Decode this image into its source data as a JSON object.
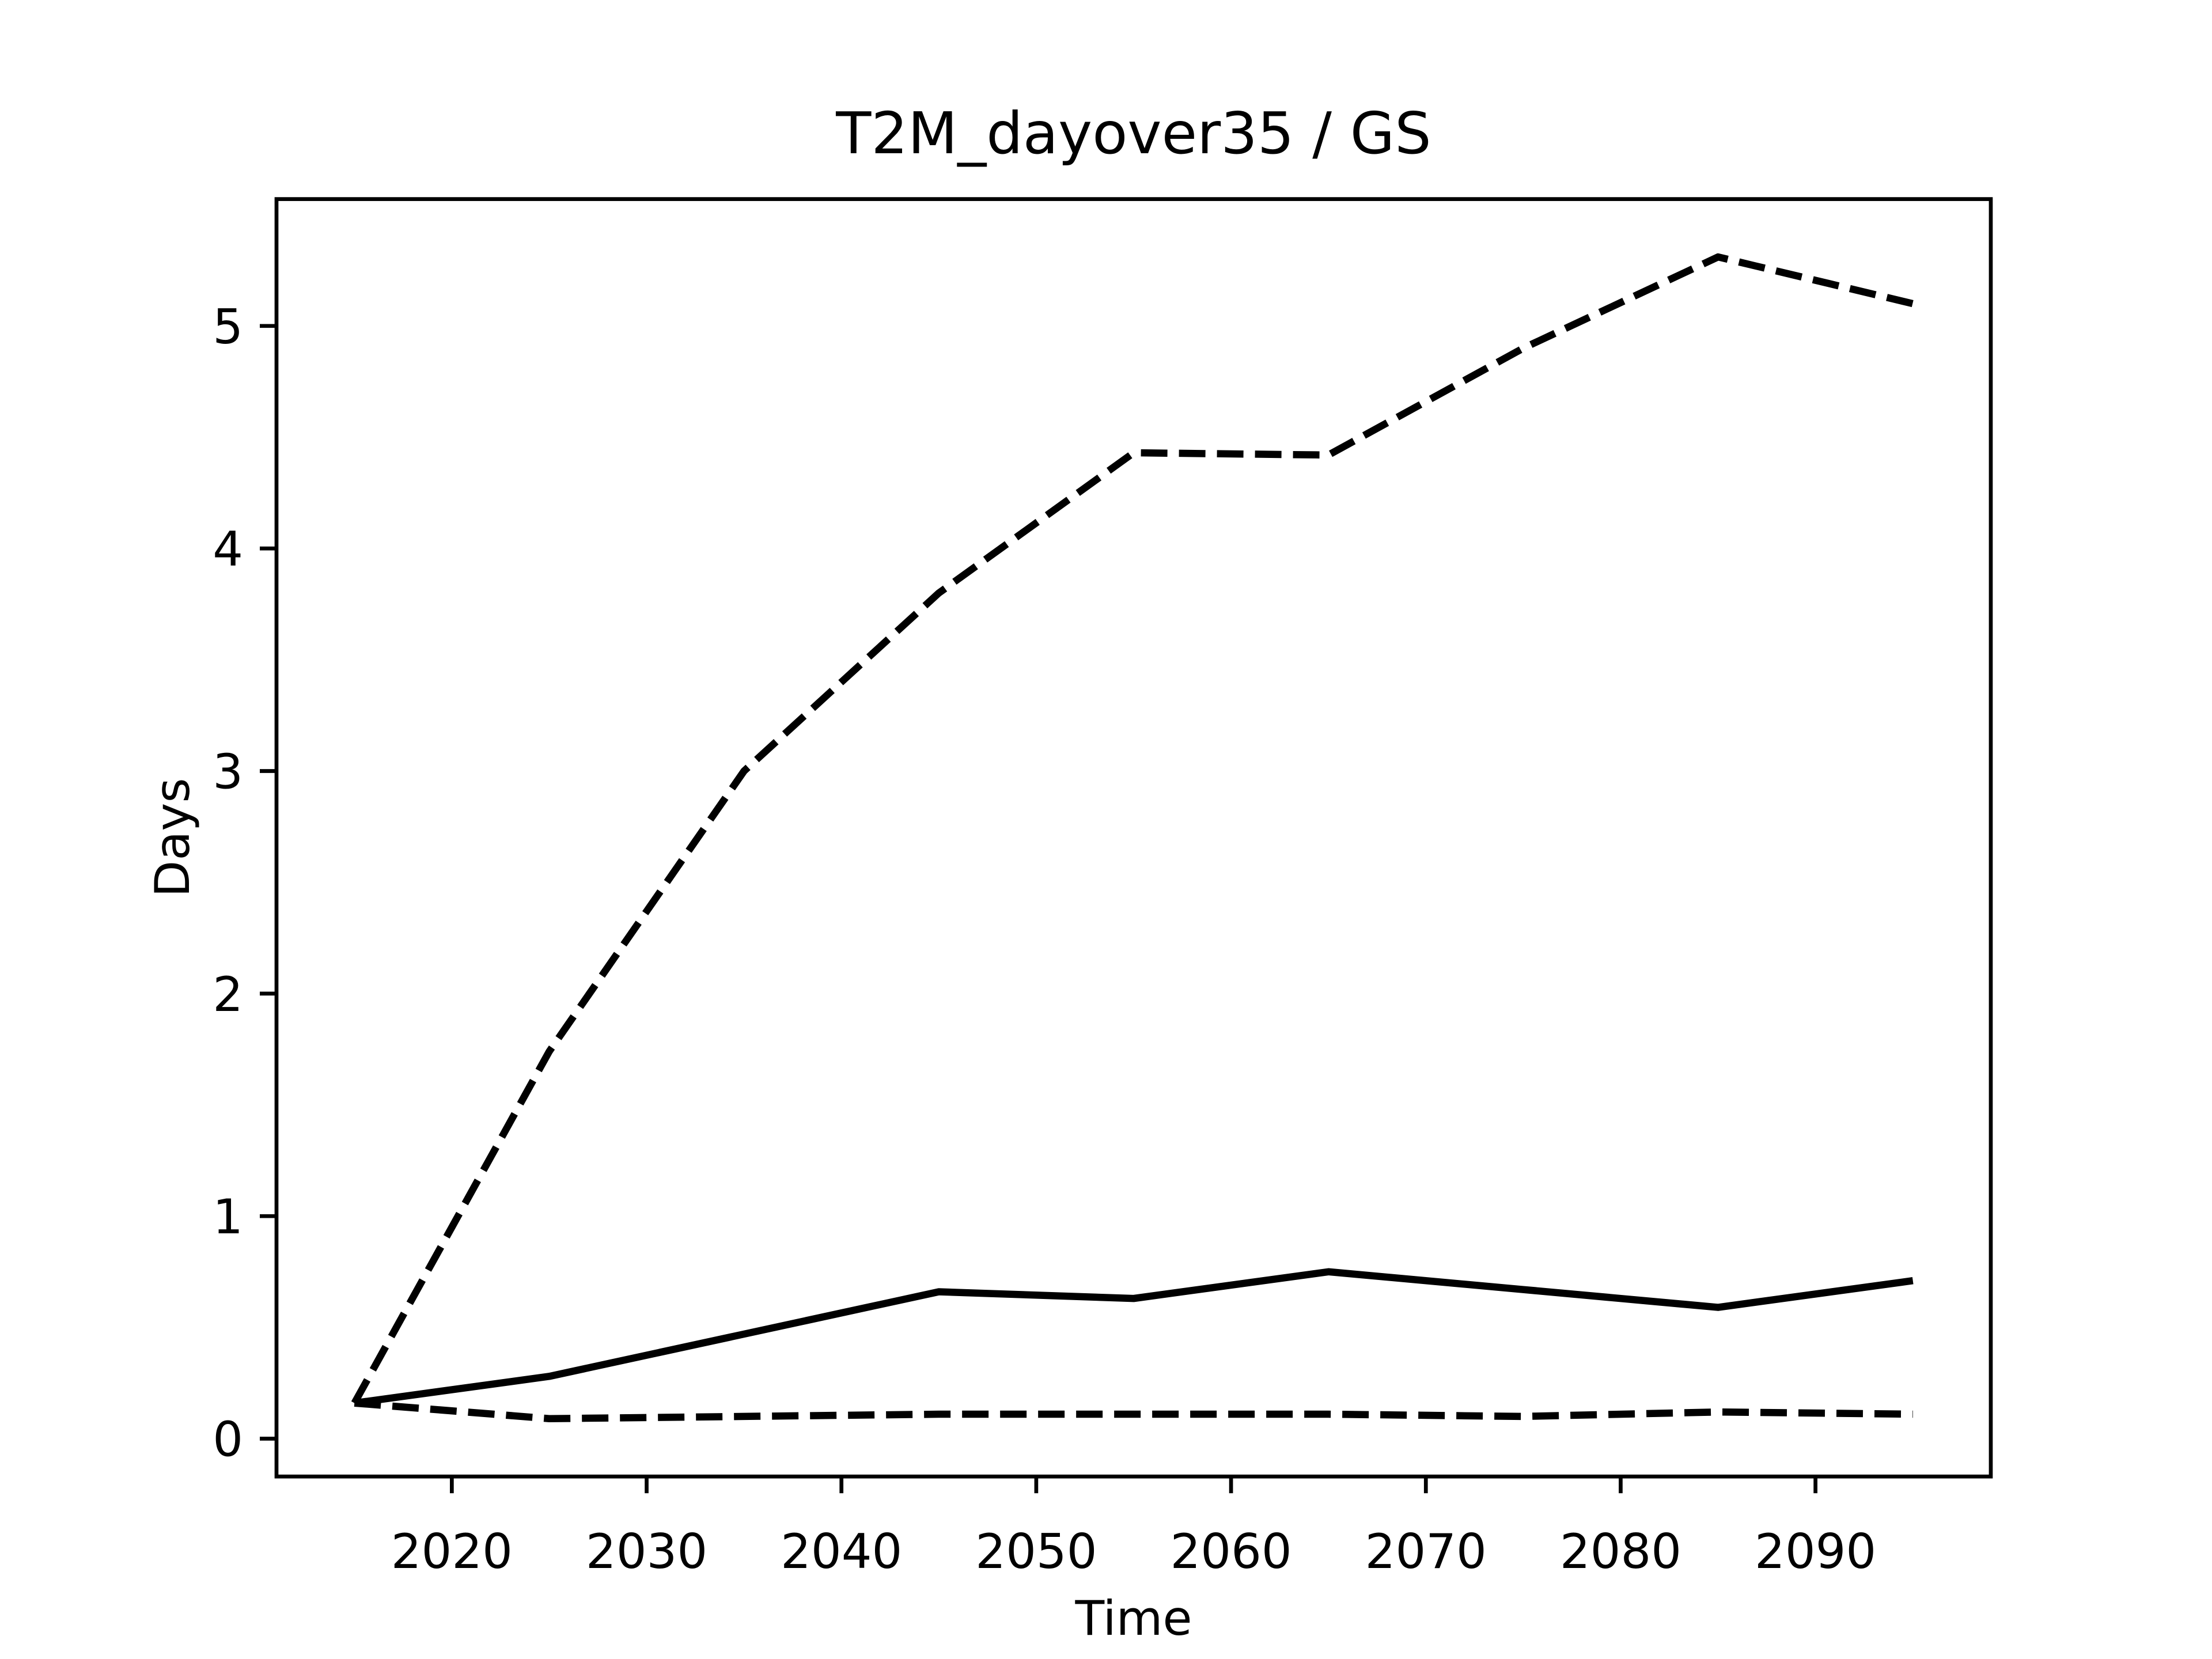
{
  "chart_data": {
    "type": "line",
    "title": "T2M_dayover35 / GS",
    "xlabel": "Time",
    "ylabel": "Days",
    "x": [
      2015,
      2025,
      2035,
      2045,
      2055,
      2065,
      2075,
      2085,
      2095
    ],
    "series": [
      {
        "color": "#000000",
        "dashed": false,
        "values": [
          0.16,
          0.28,
          0.47,
          0.66,
          0.63,
          0.75,
          0.67,
          0.59,
          0.71
        ]
      },
      {
        "color": "#000000",
        "dashed": true,
        "values": [
          0.16,
          1.74,
          3.0,
          3.8,
          4.43,
          4.42,
          4.9,
          5.31,
          5.1
        ]
      },
      {
        "color": "#000000",
        "dashed": true,
        "values": [
          0.16,
          0.09,
          0.1,
          0.11,
          0.11,
          0.11,
          0.1,
          0.12,
          0.11
        ]
      }
    ],
    "xlim": [
      2011,
      2099
    ],
    "xticks": [
      2020,
      2030,
      2040,
      2050,
      2060,
      2070,
      2080,
      2090
    ],
    "ylim": [
      -0.17,
      5.57
    ],
    "yticks": [
      0,
      1,
      2,
      3,
      4,
      5
    ],
    "grid": false
  }
}
